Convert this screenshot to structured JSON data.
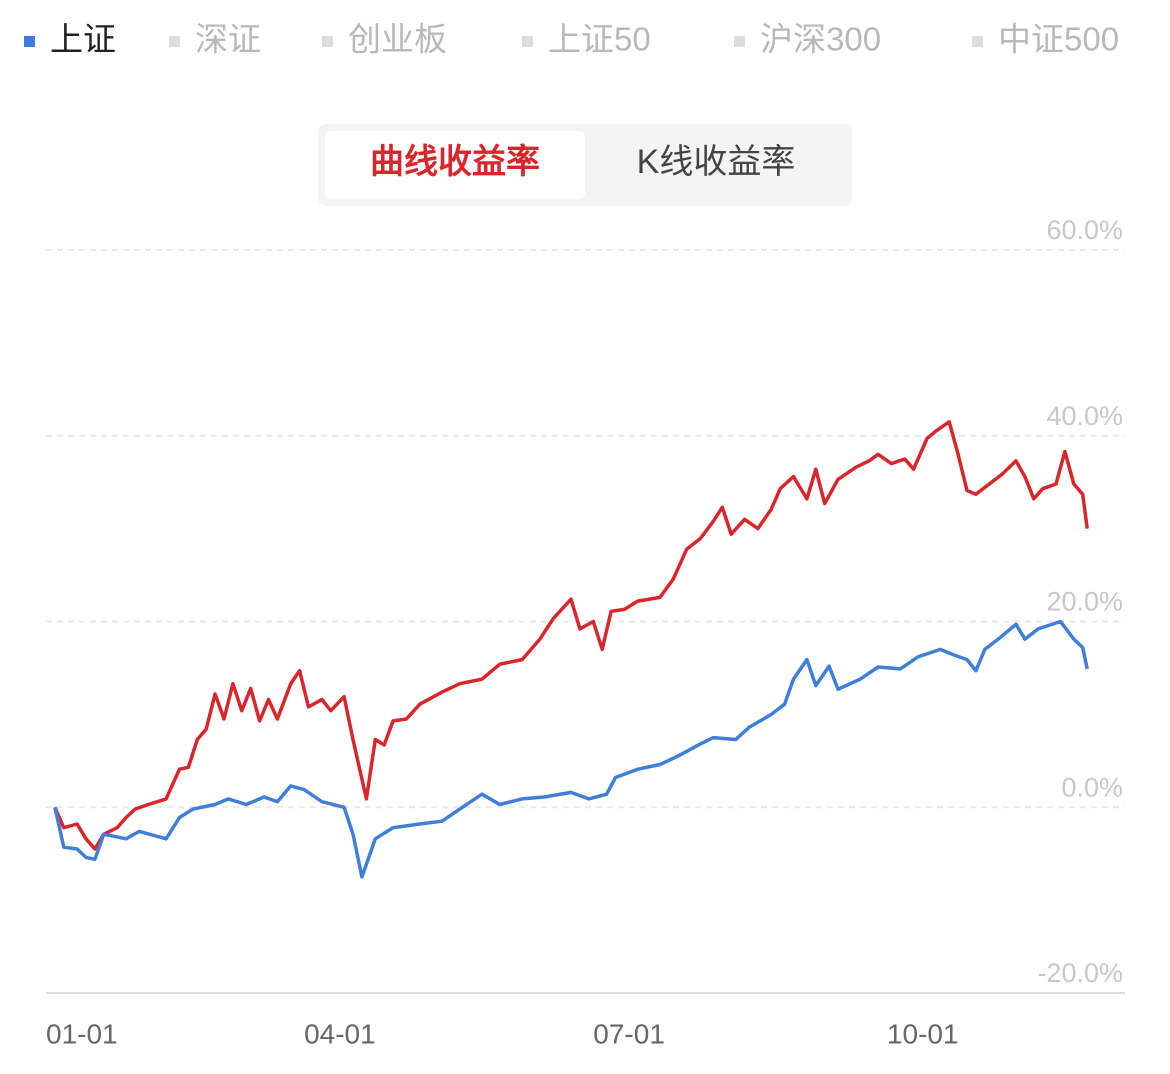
{
  "index_tabs": [
    "上证",
    "深证",
    "创业板",
    "上证50",
    "沪深300",
    "中证500"
  ],
  "view_toggle": [
    "曲线收益率",
    "K线收益率"
  ],
  "chart_data": {
    "type": "line",
    "xlim": [
      0,
      242.5
    ],
    "xticks": [
      {
        "value": 0,
        "label": "01-01"
      },
      {
        "value": 58,
        "label": "04-01"
      },
      {
        "value": 123,
        "label": "07-01"
      },
      {
        "value": 189,
        "label": "10-01"
      }
    ],
    "ylim": [
      -20,
      60
    ],
    "yticks": [
      {
        "value": -20,
        "label": "-20.0%"
      },
      {
        "value": 0,
        "label": "0.0%"
      },
      {
        "value": 20,
        "label": "20.0%"
      },
      {
        "value": 40,
        "label": "40.0%"
      },
      {
        "value": 60,
        "label": "60.0%"
      }
    ],
    "grid": true,
    "series": [
      {
        "color": "#d9262c",
        "x": [
          2,
          4,
          7,
          9,
          11,
          13,
          16,
          18,
          20,
          23,
          27,
          30,
          32,
          34,
          36,
          38,
          40,
          42,
          44,
          46,
          48,
          50,
          52,
          55,
          57,
          59,
          62,
          64,
          67,
          69,
          72,
          74,
          76,
          78,
          81,
          84,
          89,
          93,
          98,
          102,
          107,
          111,
          114,
          118,
          120,
          123,
          125,
          127,
          130,
          133,
          138,
          141,
          144,
          147,
          150,
          152,
          154,
          157,
          160,
          163,
          165,
          168,
          171,
          173,
          175,
          178,
          182,
          185,
          187,
          190,
          193,
          195,
          198,
          200,
          203,
          205,
          207,
          209,
          212,
          215,
          218,
          220,
          222,
          224,
          227,
          229,
          231,
          233,
          234
        ],
        "values": [
          0,
          -2.2,
          -1.8,
          -3.4,
          -4.5,
          -2.9,
          -2.2,
          -1.1,
          -0.2,
          0.3,
          0.9,
          4.1,
          4.3,
          7.3,
          8.4,
          12.2,
          9.5,
          13.3,
          10.4,
          12.8,
          9.3,
          11.6,
          9.5,
          13.3,
          14.7,
          10.8,
          11.6,
          10.4,
          11.9,
          7.3,
          0.9,
          7.3,
          6.7,
          9.3,
          9.5,
          11.1,
          12.4,
          13.3,
          13.8,
          15.4,
          15.9,
          18.1,
          20.3,
          22.4,
          19.2,
          20.0,
          17.0,
          21.1,
          21.3,
          22.2,
          22.6,
          24.6,
          27.8,
          28.9,
          30.8,
          32.3,
          29.4,
          31.0,
          30.0,
          32.1,
          34.3,
          35.6,
          33.2,
          36.4,
          32.7,
          35.3,
          36.6,
          37.3,
          38.0,
          37.0,
          37.5,
          36.4,
          39.7,
          40.5,
          41.5,
          38.0,
          34.1,
          33.7,
          34.8,
          35.9,
          37.3,
          35.6,
          33.2,
          34.3,
          34.8,
          38.3,
          34.8,
          33.7,
          30.0
        ]
      },
      {
        "color": "#3f7fd8",
        "x": [
          2,
          4,
          7,
          9,
          11,
          13,
          18,
          21,
          27,
          30,
          33,
          38,
          41,
          45,
          49,
          52,
          55,
          58,
          62,
          67,
          69,
          71,
          74,
          78,
          84,
          89,
          93,
          98,
          102,
          107,
          112,
          118,
          122,
          126,
          128,
          133,
          138,
          142,
          147,
          150,
          155,
          158,
          163,
          166,
          168,
          171,
          173,
          176,
          178,
          183,
          187,
          192,
          196,
          201,
          204,
          207,
          209,
          211,
          214,
          218,
          220,
          223,
          228,
          231,
          233,
          234
        ],
        "values": [
          0,
          -4.3,
          -4.5,
          -5.4,
          -5.6,
          -2.9,
          -3.4,
          -2.6,
          -3.4,
          -1.1,
          -0.2,
          0.3,
          0.9,
          0.3,
          1.1,
          0.6,
          2.3,
          1.9,
          0.6,
          0,
          -2.9,
          -7.5,
          -3.4,
          -2.2,
          -1.8,
          -1.5,
          -0.2,
          1.4,
          0.3,
          0.9,
          1.1,
          1.6,
          0.9,
          1.4,
          3.2,
          4.1,
          4.6,
          5.5,
          6.8,
          7.5,
          7.3,
          8.6,
          10.0,
          11.1,
          13.8,
          15.9,
          13.1,
          15.2,
          12.7,
          13.8,
          15.1,
          14.9,
          16.2,
          17.0,
          16.4,
          15.9,
          14.7,
          17.0,
          18.1,
          19.7,
          18.1,
          19.2,
          20.0,
          18.1,
          17.2,
          14.9
        ]
      }
    ]
  }
}
